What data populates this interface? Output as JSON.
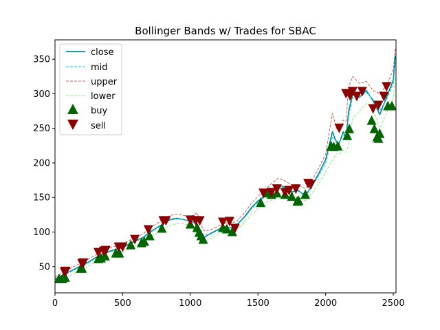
{
  "chart_data": {
    "type": "line",
    "title": "Bollinger Bands w/ Trades for SBAC",
    "xlabel": "",
    "ylabel": "",
    "xlim": [
      0,
      2520
    ],
    "ylim": [
      12,
      378
    ],
    "x_ticks": [
      0,
      500,
      1000,
      1500,
      2000,
      2500
    ],
    "y_ticks": [
      50,
      100,
      150,
      200,
      250,
      300,
      350
    ],
    "grid": false,
    "legend_position": "top-left",
    "colors": {
      "close": "#008b8b",
      "mid": "#00bfff",
      "upper": "#cd5c5c",
      "lower": "#90ee90",
      "buy": "#006400",
      "sell": "#8b0000"
    },
    "legend": [
      "close",
      "mid",
      "upper",
      "lower",
      "buy",
      "sell"
    ],
    "series": [
      {
        "name": "close",
        "x": [
          0,
          40,
          80,
          120,
          160,
          200,
          250,
          300,
          350,
          400,
          450,
          500,
          550,
          600,
          650,
          700,
          750,
          800,
          850,
          900,
          950,
          1000,
          1050,
          1080,
          1100,
          1150,
          1200,
          1250,
          1300,
          1350,
          1400,
          1450,
          1500,
          1550,
          1600,
          1650,
          1700,
          1750,
          1800,
          1850,
          1900,
          1950,
          2000,
          2050,
          2080,
          2100,
          2130,
          2150,
          2170,
          2200,
          2250,
          2300,
          2350,
          2400,
          2450,
          2500,
          2515
        ],
        "values": [
          32,
          36,
          40,
          44,
          48,
          52,
          57,
          63,
          68,
          72,
          75,
          78,
          83,
          88,
          92,
          100,
          106,
          112,
          118,
          120,
          118,
          116,
          112,
          100,
          92,
          98,
          103,
          108,
          106,
          112,
          122,
          135,
          145,
          152,
          160,
          168,
          165,
          158,
          160,
          152,
          168,
          185,
          205,
          245,
          230,
          228,
          245,
          235,
          275,
          300,
          295,
          305,
          290,
          270,
          295,
          320,
          355
        ]
      },
      {
        "name": "mid",
        "x": [
          0,
          40,
          80,
          120,
          160,
          200,
          250,
          300,
          350,
          400,
          450,
          500,
          550,
          600,
          650,
          700,
          750,
          800,
          850,
          900,
          950,
          1000,
          1050,
          1080,
          1100,
          1150,
          1200,
          1250,
          1300,
          1350,
          1400,
          1450,
          1500,
          1550,
          1600,
          1650,
          1700,
          1750,
          1800,
          1850,
          1900,
          1950,
          2000,
          2050,
          2080,
          2100,
          2130,
          2150,
          2170,
          2200,
          2250,
          2300,
          2350,
          2400,
          2450,
          2500,
          2515
        ],
        "values": [
          31,
          35,
          39,
          43,
          47,
          51,
          56,
          62,
          67,
          71,
          74,
          77,
          82,
          87,
          91,
          99,
          105,
          111,
          117,
          119,
          118,
          116,
          112,
          102,
          95,
          97,
          102,
          107,
          106,
          111,
          121,
          133,
          143,
          151,
          158,
          166,
          164,
          159,
          159,
          154,
          166,
          182,
          200,
          238,
          232,
          229,
          240,
          238,
          268,
          295,
          295,
          302,
          292,
          275,
          292,
          315,
          345
        ]
      },
      {
        "name": "upper",
        "x": [
          0,
          40,
          80,
          120,
          160,
          200,
          250,
          300,
          350,
          400,
          450,
          500,
          550,
          600,
          650,
          700,
          750,
          800,
          850,
          900,
          950,
          1000,
          1050,
          1080,
          1100,
          1150,
          1200,
          1250,
          1300,
          1350,
          1400,
          1450,
          1500,
          1550,
          1600,
          1650,
          1700,
          1750,
          1800,
          1850,
          1900,
          1950,
          2000,
          2050,
          2080,
          2100,
          2130,
          2150,
          2170,
          2200,
          2250,
          2300,
          2350,
          2400,
          2450,
          2500,
          2515
        ],
        "values": [
          35,
          39,
          44,
          48,
          52,
          56,
          61,
          67,
          72,
          77,
          80,
          83,
          88,
          93,
          97,
          106,
          112,
          118,
          124,
          126,
          124,
          122,
          128,
          110,
          102,
          103,
          108,
          114,
          112,
          117,
          128,
          141,
          152,
          160,
          170,
          178,
          174,
          168,
          167,
          163,
          175,
          193,
          213,
          272,
          250,
          245,
          262,
          260,
          310,
          325,
          315,
          318,
          305,
          300,
          312,
          335,
          365
        ]
      },
      {
        "name": "lower",
        "x": [
          0,
          40,
          80,
          120,
          160,
          200,
          250,
          300,
          350,
          400,
          450,
          500,
          550,
          600,
          650,
          700,
          750,
          800,
          850,
          900,
          950,
          1000,
          1050,
          1080,
          1100,
          1150,
          1200,
          1250,
          1300,
          1350,
          1400,
          1450,
          1500,
          1550,
          1600,
          1650,
          1700,
          1750,
          1800,
          1850,
          1900,
          1950,
          2000,
          2050,
          2080,
          2100,
          2130,
          2150,
          2170,
          2200,
          2250,
          2300,
          2350,
          2400,
          2450,
          2500,
          2515
        ],
        "values": [
          27,
          31,
          35,
          38,
          42,
          46,
          51,
          57,
          62,
          66,
          68,
          71,
          76,
          81,
          85,
          92,
          98,
          104,
          110,
          112,
          112,
          110,
          96,
          92,
          86,
          91,
          96,
          101,
          100,
          105,
          114,
          125,
          134,
          142,
          146,
          154,
          154,
          150,
          151,
          145,
          157,
          171,
          187,
          204,
          214,
          213,
          218,
          215,
          226,
          265,
          275,
          286,
          279,
          250,
          272,
          295,
          325
        ]
      }
    ],
    "buy_points": {
      "x": [
        30,
        55,
        75,
        190,
        200,
        320,
        340,
        370,
        450,
        475,
        560,
        640,
        660,
        700,
        790,
        1000,
        1050,
        1065,
        1080,
        1095,
        1240,
        1270,
        1310,
        1520,
        1575,
        1600,
        1640,
        1700,
        1750,
        1790,
        1800,
        1850,
        2040,
        2060,
        2090,
        2160,
        2175,
        2340,
        2360,
        2380,
        2390,
        2400,
        2460,
        2490
      ],
      "values": [
        33,
        33,
        35,
        48,
        48,
        62,
        63,
        66,
        70,
        70,
        82,
        85,
        87,
        95,
        106,
        112,
        107,
        100,
        95,
        90,
        107,
        105,
        101,
        143,
        157,
        155,
        157,
        155,
        152,
        145,
        146,
        155,
        225,
        224,
        225,
        240,
        250,
        262,
        250,
        238,
        236,
        243,
        283,
        283
      ]
    },
    "sell_points": {
      "x": [
        70,
        80,
        200,
        210,
        320,
        360,
        375,
        470,
        500,
        590,
        690,
        800,
        820,
        1000,
        1040,
        1070,
        1240,
        1290,
        1330,
        1540,
        1600,
        1640,
        1700,
        1730,
        1780,
        1870,
        1890,
        2100,
        2150,
        2180,
        2200,
        2230,
        2270,
        2350,
        2390,
        2430,
        2450
      ],
      "values": [
        42,
        43,
        54,
        55,
        70,
        72,
        73,
        78,
        78,
        89,
        103,
        116,
        116,
        117,
        116,
        116,
        114,
        115,
        105,
        156,
        157,
        162,
        157,
        160,
        162,
        170,
        168,
        250,
        300,
        297,
        303,
        296,
        303,
        278,
        283,
        296,
        310
      ]
    }
  }
}
